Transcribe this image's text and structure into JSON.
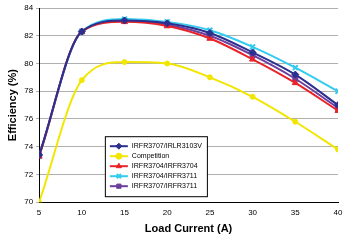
{
  "chart_data": {
    "type": "line",
    "x_label": "Load Current (A)",
    "y_label": "Efficiency (%)",
    "x": [
      5,
      10,
      15,
      20,
      25,
      30,
      35,
      40
    ],
    "xlim": [
      5,
      40
    ],
    "xticks": [
      5,
      10,
      15,
      20,
      25,
      30,
      35,
      40
    ],
    "ylim": [
      70,
      84
    ],
    "yticks": [
      70,
      72,
      74,
      76,
      78,
      80,
      82,
      84
    ],
    "grid": true,
    "legend": "lower left",
    "series": [
      {
        "name": "IRFR3707/IRLR3103V",
        "color": "#2b2f8f",
        "marker": "diamond",
        "line_style": "solid",
        "values": [
          73.4,
          82.3,
          83.1,
          82.9,
          82.2,
          80.8,
          79.2,
          77.0
        ]
      },
      {
        "name": "Competition",
        "color": "#f2e600",
        "marker": "circle",
        "line_style": "solid",
        "values": [
          70.0,
          78.8,
          80.1,
          80.0,
          79.0,
          77.6,
          75.8,
          73.8
        ]
      },
      {
        "name": "IRFR3704/IRFR3704",
        "color": "#e8242a",
        "marker": "triangle",
        "line_style": "solid",
        "values": [
          73.3,
          82.3,
          83.0,
          82.7,
          81.8,
          80.3,
          78.6,
          76.6
        ]
      },
      {
        "name": "IRFR3704/IRFR3711",
        "color": "#33ccee",
        "marker": "x",
        "line_style": "solid",
        "values": [
          73.3,
          82.3,
          83.2,
          83.0,
          82.4,
          81.2,
          79.7,
          78.0
        ]
      },
      {
        "name": "IRFR3707/IRFR3711",
        "color": "#6a3f9e",
        "marker": "square",
        "line_style": "solid",
        "values": [
          73.4,
          82.3,
          83.1,
          82.8,
          82.0,
          80.6,
          78.9,
          76.8
        ]
      }
    ]
  }
}
